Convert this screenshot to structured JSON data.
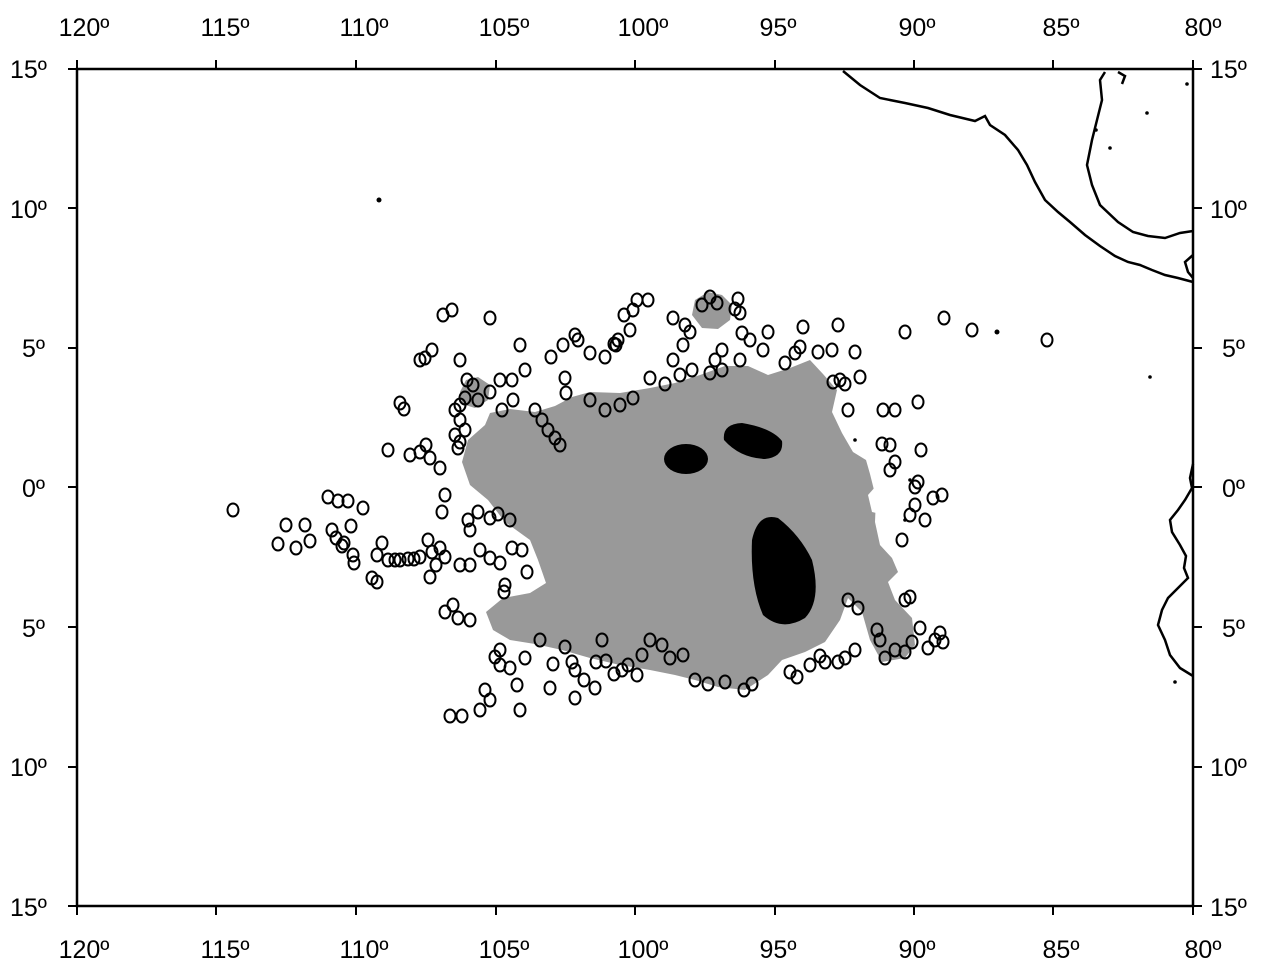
{
  "map": {
    "lon_range": [
      120,
      80
    ],
    "lat_range": [
      15,
      -15
    ],
    "top_labels": [
      "120º",
      "115º",
      "110º",
      "105º",
      "100º",
      "95º",
      "90º",
      "85º",
      "80º"
    ],
    "bottom_labels": [
      "120º",
      "115º",
      "110º",
      "105º",
      "100º",
      "95º",
      "90º",
      "85º",
      "80º"
    ],
    "left_labels": [
      "15º",
      "10º",
      "5º",
      "0º",
      "5º",
      "10º",
      "15º"
    ],
    "right_labels": [
      "15º",
      "10º",
      "5º",
      "0º",
      "5º",
      "10º",
      "15º"
    ],
    "colors": {
      "background": "#ffffff",
      "frame": "#000000",
      "coastline": "#000000",
      "occurrence_area": "#999999",
      "core_area": "#000000",
      "record_marker_stroke": "#000000"
    },
    "icons": {
      "record": "open-circle-marker",
      "coast": "coastline-line"
    }
  }
}
